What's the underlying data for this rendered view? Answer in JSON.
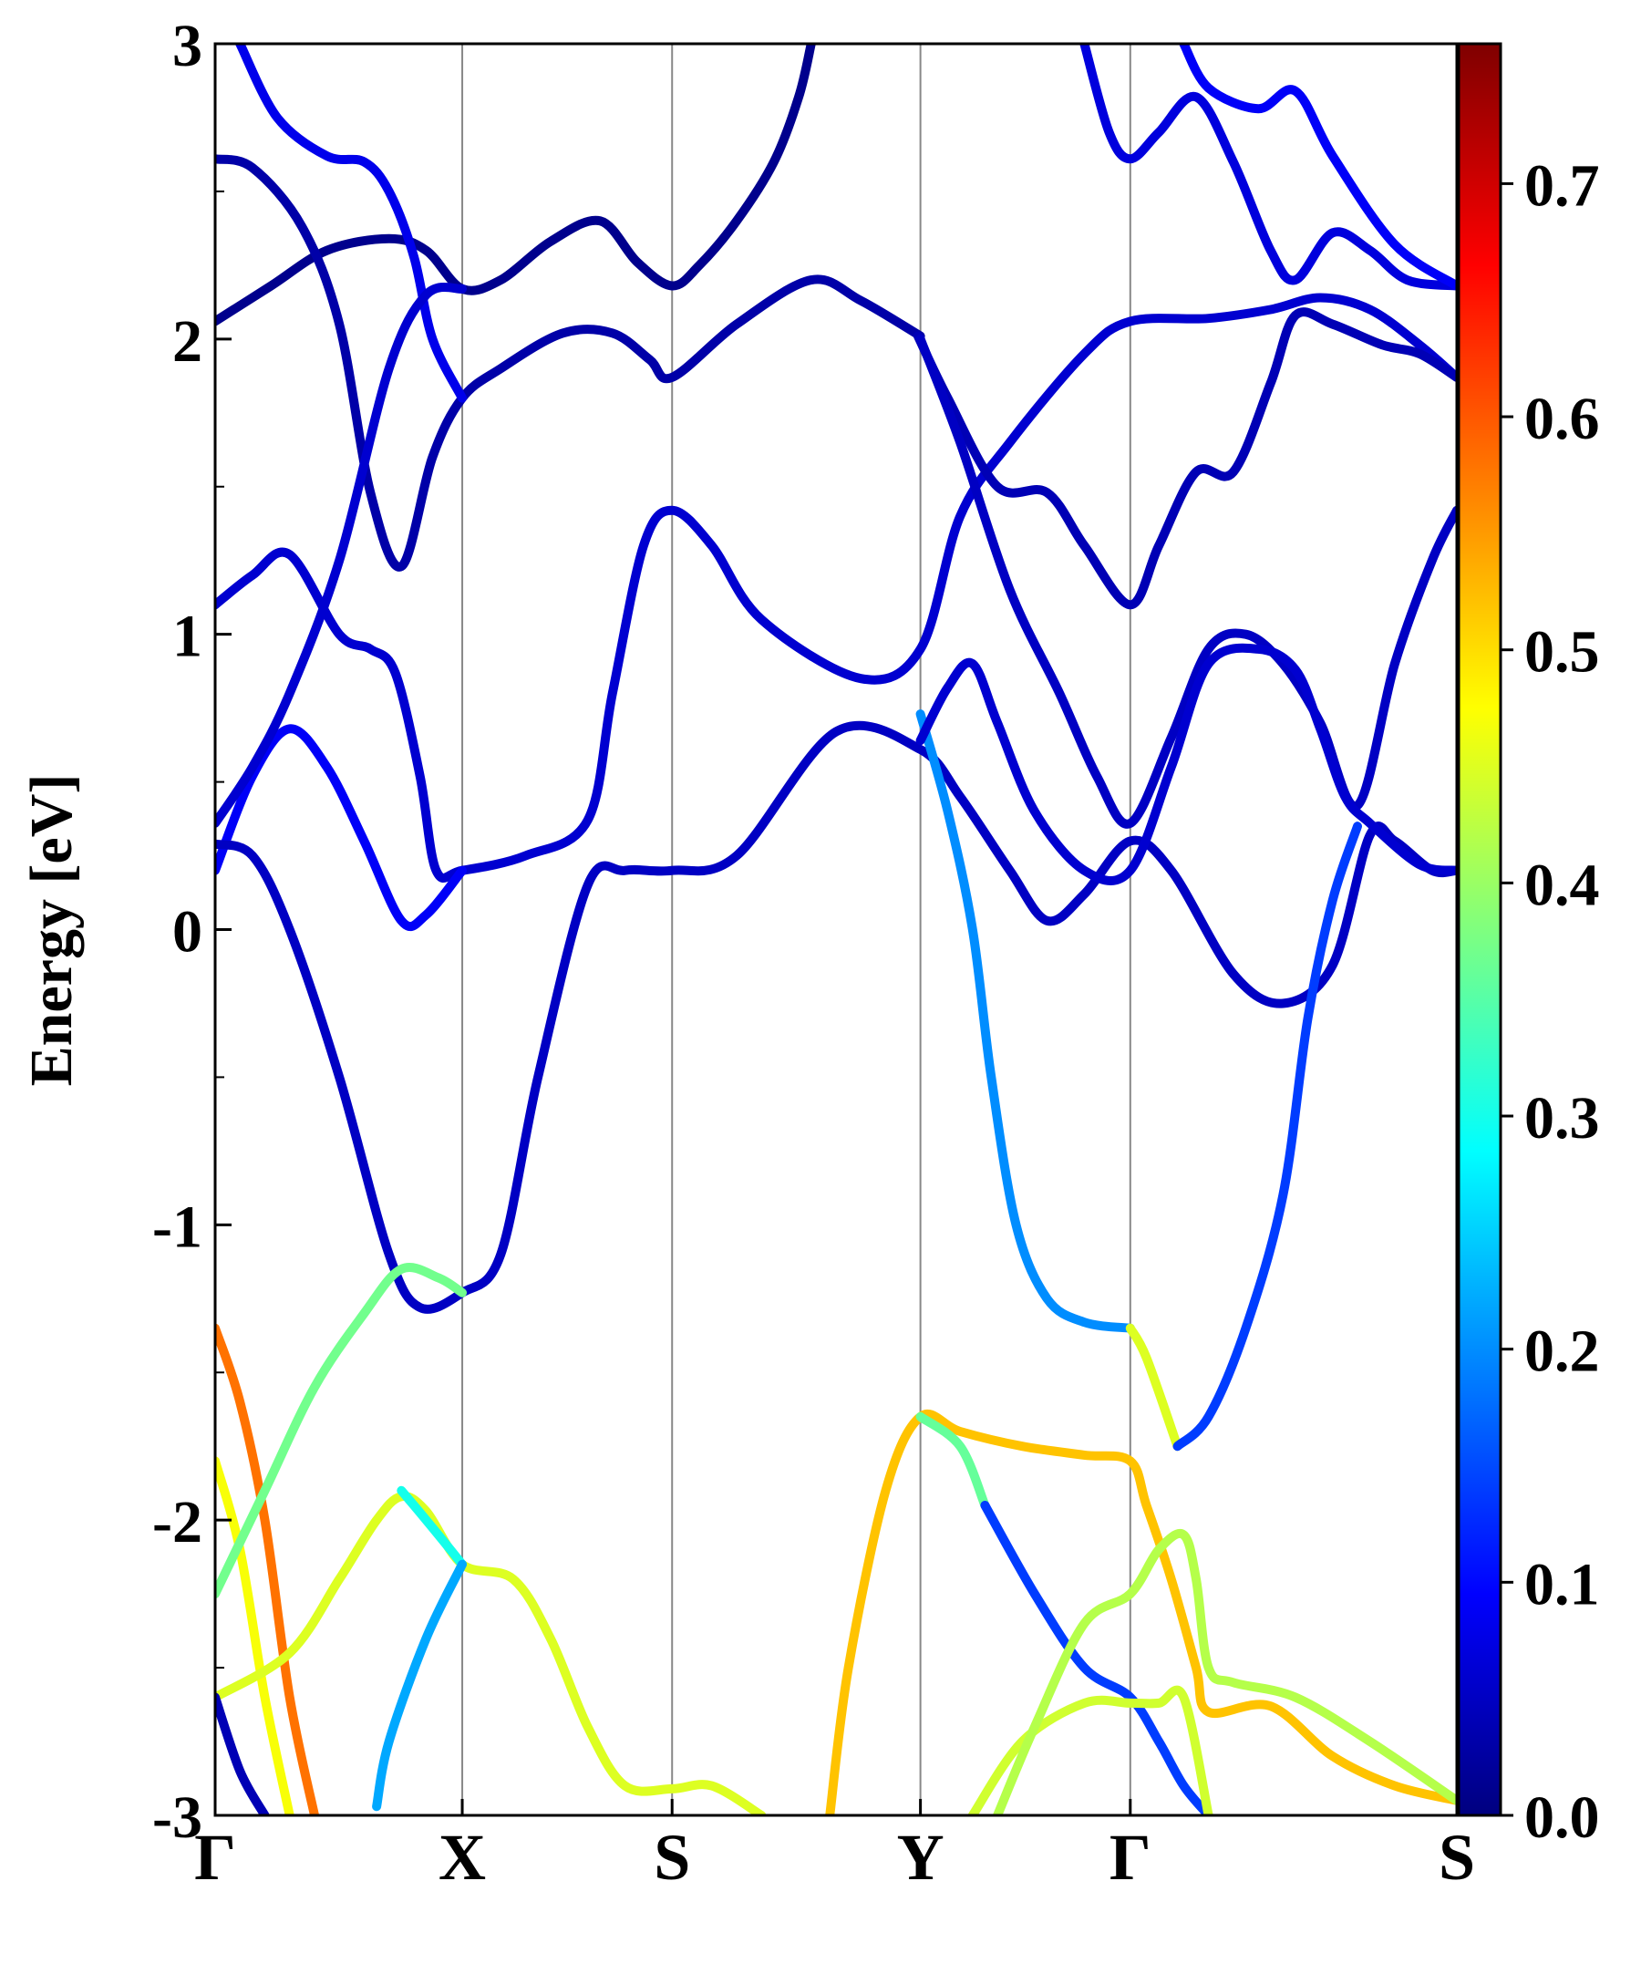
{
  "chart_data": {
    "type": "line",
    "title": "",
    "ylabel": "Energy [eV]",
    "xlabel": "",
    "ylim": [
      -3,
      3
    ],
    "yticks": [
      "-3",
      "-2",
      "-1",
      "0",
      "1",
      "2",
      "3"
    ],
    "x_path_labels": [
      "Γ",
      "X",
      "S",
      "Y",
      "Γ",
      "S"
    ],
    "x_path_positions": [
      0,
      0.199,
      0.368,
      0.568,
      0.737,
      1.0
    ],
    "colorbar": {
      "colormap": "jet",
      "range": [
        0.0,
        0.76
      ],
      "ticks": [
        "0.0",
        "0.1",
        "0.2",
        "0.3",
        "0.4",
        "0.5",
        "0.6",
        "0.7"
      ]
    },
    "series": [
      {
        "weight": 0.01,
        "points": [
          [
            0,
            2.06
          ],
          [
            0.045,
            2.18
          ],
          [
            0.09,
            2.3
          ],
          [
            0.14,
            2.34
          ],
          [
            0.17,
            2.3
          ],
          [
            0.199,
            2.17
          ],
          [
            0.23,
            2.2
          ],
          [
            0.27,
            2.33
          ],
          [
            0.31,
            2.4
          ],
          [
            0.34,
            2.26
          ],
          [
            0.368,
            2.18
          ],
          [
            0.39,
            2.25
          ],
          [
            0.42,
            2.4
          ],
          [
            0.45,
            2.6
          ],
          [
            0.47,
            2.82
          ],
          [
            0.48,
            3.0
          ]
        ]
      },
      {
        "weight": 0.03,
        "points": [
          [
            0,
            2.61
          ],
          [
            0.03,
            2.58
          ],
          [
            0.07,
            2.38
          ],
          [
            0.1,
            2.05
          ],
          [
            0.125,
            1.48
          ],
          [
            0.15,
            1.23
          ],
          [
            0.175,
            1.6
          ],
          [
            0.199,
            1.8
          ],
          [
            0.23,
            1.9
          ],
          [
            0.28,
            2.02
          ],
          [
            0.32,
            2.02
          ],
          [
            0.35,
            1.93
          ],
          [
            0.368,
            1.87
          ],
          [
            0.42,
            2.05
          ],
          [
            0.48,
            2.2
          ],
          [
            0.52,
            2.13
          ],
          [
            0.568,
            2.01
          ]
        ]
      },
      {
        "weight": 0.08,
        "points": [
          [
            0.02,
            3.0
          ],
          [
            0.05,
            2.75
          ],
          [
            0.09,
            2.62
          ],
          [
            0.12,
            2.6
          ],
          [
            0.14,
            2.5
          ],
          [
            0.16,
            2.28
          ],
          [
            0.175,
            2.0
          ],
          [
            0.199,
            1.8
          ]
        ]
      },
      {
        "weight": 0.06,
        "points": [
          [
            0,
            1.1
          ],
          [
            0.03,
            1.2
          ],
          [
            0.06,
            1.27
          ],
          [
            0.1,
            1.0
          ],
          [
            0.125,
            0.95
          ],
          [
            0.145,
            0.87
          ],
          [
            0.165,
            0.52
          ],
          [
            0.178,
            0.2
          ],
          [
            0.199,
            0.2
          ],
          [
            0.25,
            0.25
          ],
          [
            0.3,
            0.37
          ],
          [
            0.32,
            0.8
          ],
          [
            0.345,
            1.3
          ],
          [
            0.368,
            1.42
          ],
          [
            0.4,
            1.3
          ],
          [
            0.44,
            1.05
          ],
          [
            0.52,
            0.85
          ],
          [
            0.568,
            0.95
          ],
          [
            0.6,
            1.4
          ],
          [
            0.64,
            1.65
          ],
          [
            0.7,
            1.95
          ],
          [
            0.737,
            2.06
          ],
          [
            0.8,
            2.07
          ],
          [
            0.85,
            2.1
          ],
          [
            0.89,
            2.14
          ],
          [
            0.93,
            2.1
          ],
          [
            0.97,
            1.98
          ],
          [
            1.0,
            1.87
          ]
        ]
      },
      {
        "weight": 0.09,
        "points": [
          [
            0,
            0.2
          ],
          [
            0.03,
            0.52
          ],
          [
            0.06,
            0.68
          ],
          [
            0.09,
            0.55
          ],
          [
            0.12,
            0.3
          ],
          [
            0.15,
            0.03
          ],
          [
            0.17,
            0.05
          ],
          [
            0.199,
            0.2
          ]
        ]
      },
      {
        "weight": 0.06,
        "points": [
          [
            0,
            0.36
          ],
          [
            0.03,
            0.55
          ],
          [
            0.06,
            0.8
          ],
          [
            0.1,
            1.25
          ],
          [
            0.14,
            1.9
          ],
          [
            0.17,
            2.15
          ],
          [
            0.199,
            2.17
          ]
        ]
      },
      {
        "weight": 0.05,
        "points": [
          [
            0,
            0.29
          ],
          [
            0.03,
            0.25
          ],
          [
            0.06,
            0.0
          ],
          [
            0.1,
            -0.5
          ],
          [
            0.14,
            -1.1
          ],
          [
            0.165,
            -1.28
          ],
          [
            0.199,
            -1.23
          ],
          [
            0.23,
            -1.1
          ],
          [
            0.26,
            -0.5
          ],
          [
            0.3,
            0.15
          ],
          [
            0.33,
            0.2
          ],
          [
            0.368,
            0.2
          ],
          [
            0.42,
            0.25
          ],
          [
            0.5,
            0.67
          ],
          [
            0.568,
            0.61
          ],
          [
            0.6,
            0.45
          ],
          [
            0.64,
            0.2
          ],
          [
            0.67,
            0.03
          ],
          [
            0.7,
            0.12
          ],
          [
            0.737,
            0.3
          ],
          [
            0.77,
            0.2
          ],
          [
            0.82,
            -0.15
          ],
          [
            0.86,
            -0.25
          ],
          [
            0.9,
            -0.12
          ],
          [
            0.93,
            0.32
          ],
          [
            0.95,
            0.3
          ],
          [
            0.98,
            0.2
          ],
          [
            1.0,
            0.2
          ]
        ]
      },
      {
        "weight": 0.2,
        "points": [
          [
            0.568,
            0.73
          ],
          [
            0.59,
            0.4
          ],
          [
            0.61,
            0.0
          ],
          [
            0.625,
            -0.5
          ],
          [
            0.645,
            -1.0
          ],
          [
            0.67,
            -1.25
          ],
          [
            0.7,
            -1.33
          ],
          [
            0.737,
            -1.35
          ]
        ]
      },
      {
        "weight": 0.45,
        "points": [
          [
            0.737,
            -1.35
          ],
          [
            0.75,
            -1.45
          ],
          [
            0.775,
            -1.75
          ]
        ]
      },
      {
        "weight": 0.14,
        "points": [
          [
            0.775,
            -1.75
          ],
          [
            0.8,
            -1.65
          ],
          [
            0.83,
            -1.35
          ],
          [
            0.86,
            -0.9
          ],
          [
            0.88,
            -0.3
          ],
          [
            0.9,
            0.1
          ],
          [
            0.92,
            0.35
          ]
        ]
      },
      {
        "weight": 0.04,
        "points": [
          [
            0.566,
            2.01
          ],
          [
            0.59,
            1.8
          ],
          [
            0.63,
            1.5
          ],
          [
            0.67,
            1.48
          ],
          [
            0.7,
            1.3
          ],
          [
            0.737,
            1.1
          ],
          [
            0.76,
            1.3
          ],
          [
            0.79,
            1.55
          ],
          [
            0.82,
            1.55
          ],
          [
            0.85,
            1.85
          ],
          [
            0.87,
            2.08
          ],
          [
            0.9,
            2.05
          ],
          [
            0.94,
            1.98
          ],
          [
            0.97,
            1.95
          ],
          [
            1.0,
            1.87
          ]
        ]
      },
      {
        "weight": 0.05,
        "points": [
          [
            0.568,
            2.0
          ],
          [
            0.6,
            1.65
          ],
          [
            0.64,
            1.15
          ],
          [
            0.68,
            0.8
          ],
          [
            0.71,
            0.52
          ],
          [
            0.737,
            0.36
          ],
          [
            0.77,
            0.65
          ],
          [
            0.8,
            0.95
          ],
          [
            0.83,
            1.0
          ],
          [
            0.86,
            0.9
          ],
          [
            0.89,
            0.7
          ],
          [
            0.92,
            0.42
          ],
          [
            0.95,
            0.9
          ],
          [
            0.98,
            1.25
          ],
          [
            1.0,
            1.42
          ]
        ]
      },
      {
        "weight": 0.06,
        "points": [
          [
            0.568,
            0.64
          ],
          [
            0.59,
            0.82
          ],
          [
            0.61,
            0.9
          ],
          [
            0.63,
            0.7
          ],
          [
            0.66,
            0.4
          ],
          [
            0.7,
            0.2
          ],
          [
            0.737,
            0.2
          ],
          [
            0.77,
            0.55
          ],
          [
            0.8,
            0.9
          ],
          [
            0.84,
            0.95
          ],
          [
            0.87,
            0.88
          ],
          [
            0.89,
            0.68
          ],
          [
            0.91,
            0.45
          ],
          [
            0.93,
            0.36
          ],
          [
            0.97,
            0.22
          ],
          [
            1.0,
            0.2
          ]
        ]
      },
      {
        "weight": 0.07,
        "points": [
          [
            0.7,
            3.0
          ],
          [
            0.72,
            2.7
          ],
          [
            0.737,
            2.61
          ],
          [
            0.76,
            2.7
          ],
          [
            0.79,
            2.82
          ],
          [
            0.82,
            2.6
          ],
          [
            0.85,
            2.3
          ],
          [
            0.87,
            2.2
          ],
          [
            0.9,
            2.36
          ],
          [
            0.93,
            2.3
          ],
          [
            0.96,
            2.2
          ],
          [
            1.0,
            2.18
          ]
        ]
      },
      {
        "weight": 0.09,
        "points": [
          [
            0.78,
            3.0
          ],
          [
            0.8,
            2.85
          ],
          [
            0.84,
            2.78
          ],
          [
            0.87,
            2.84
          ],
          [
            0.9,
            2.62
          ],
          [
            0.95,
            2.32
          ],
          [
            1.0,
            2.18
          ]
        ]
      },
      {
        "weight": 0.58,
        "points": [
          [
            0,
            -1.35
          ],
          [
            0.02,
            -1.6
          ],
          [
            0.04,
            -2.0
          ],
          [
            0.06,
            -2.6
          ],
          [
            0.08,
            -3.0
          ]
        ]
      },
      {
        "weight": 0.47,
        "points": [
          [
            0,
            -1.8
          ],
          [
            0.02,
            -2.1
          ],
          [
            0.04,
            -2.6
          ],
          [
            0.06,
            -3.0
          ]
        ]
      },
      {
        "weight": 0.45,
        "points": [
          [
            0,
            -2.6
          ],
          [
            0.06,
            -2.45
          ],
          [
            0.1,
            -2.2
          ],
          [
            0.13,
            -2.0
          ],
          [
            0.15,
            -1.92
          ],
          [
            0.17,
            -1.97
          ],
          [
            0.199,
            -2.15
          ],
          [
            0.24,
            -2.2
          ],
          [
            0.27,
            -2.4
          ],
          [
            0.3,
            -2.7
          ],
          [
            0.33,
            -2.9
          ],
          [
            0.368,
            -2.91
          ],
          [
            0.4,
            -2.9
          ],
          [
            0.44,
            -3.0
          ]
        ]
      },
      {
        "weight": 0.37,
        "points": [
          [
            0,
            -2.25
          ],
          [
            0.04,
            -1.9
          ],
          [
            0.08,
            -1.55
          ],
          [
            0.12,
            -1.3
          ],
          [
            0.15,
            -1.15
          ],
          [
            0.18,
            -1.18
          ],
          [
            0.199,
            -1.23
          ]
        ]
      },
      {
        "weight": 0.3,
        "points": [
          [
            0.15,
            -1.9
          ],
          [
            0.17,
            -2.0
          ],
          [
            0.199,
            -2.15
          ]
        ]
      },
      {
        "weight": 0.22,
        "points": [
          [
            0.199,
            -2.15
          ],
          [
            0.17,
            -2.4
          ],
          [
            0.14,
            -2.75
          ],
          [
            0.13,
            -2.97
          ]
        ]
      },
      {
        "weight": 0.04,
        "points": [
          [
            0,
            -2.6
          ],
          [
            0.02,
            -2.85
          ],
          [
            0.04,
            -3.0
          ]
        ]
      },
      {
        "weight": 0.52,
        "points": [
          [
            0.495,
            -3.0
          ],
          [
            0.51,
            -2.5
          ],
          [
            0.54,
            -1.9
          ],
          [
            0.568,
            -1.65
          ],
          [
            0.6,
            -1.7
          ],
          [
            0.65,
            -1.75
          ],
          [
            0.7,
            -1.78
          ],
          [
            0.737,
            -1.8
          ],
          [
            0.75,
            -1.95
          ],
          [
            0.77,
            -2.2
          ],
          [
            0.79,
            -2.5
          ],
          [
            0.8,
            -2.65
          ],
          [
            0.85,
            -2.63
          ],
          [
            0.9,
            -2.8
          ],
          [
            0.95,
            -2.9
          ],
          [
            1.0,
            -2.95
          ]
        ]
      },
      {
        "weight": 0.36,
        "points": [
          [
            0.568,
            -1.65
          ],
          [
            0.6,
            -1.75
          ],
          [
            0.62,
            -1.95
          ]
        ]
      },
      {
        "weight": 0.14,
        "points": [
          [
            0.62,
            -1.95
          ],
          [
            0.66,
            -2.25
          ],
          [
            0.7,
            -2.5
          ],
          [
            0.737,
            -2.6
          ],
          [
            0.76,
            -2.75
          ],
          [
            0.78,
            -2.9
          ],
          [
            0.8,
            -3.0
          ]
        ]
      },
      {
        "weight": 0.44,
        "points": [
          [
            0.61,
            -3.0
          ],
          [
            0.65,
            -2.75
          ],
          [
            0.7,
            -2.62
          ],
          [
            0.737,
            -2.62
          ],
          [
            0.76,
            -2.62
          ],
          [
            0.78,
            -2.6
          ],
          [
            0.8,
            -3.0
          ]
        ]
      },
      {
        "weight": 0.42,
        "points": [
          [
            0.63,
            -3.0
          ],
          [
            0.66,
            -2.7
          ],
          [
            0.7,
            -2.35
          ],
          [
            0.737,
            -2.25
          ],
          [
            0.76,
            -2.1
          ],
          [
            0.78,
            -2.05
          ],
          [
            0.79,
            -2.2
          ],
          [
            0.8,
            -2.5
          ],
          [
            0.82,
            -2.55
          ],
          [
            0.87,
            -2.6
          ],
          [
            0.93,
            -2.75
          ],
          [
            1.0,
            -2.95
          ]
        ]
      }
    ]
  }
}
